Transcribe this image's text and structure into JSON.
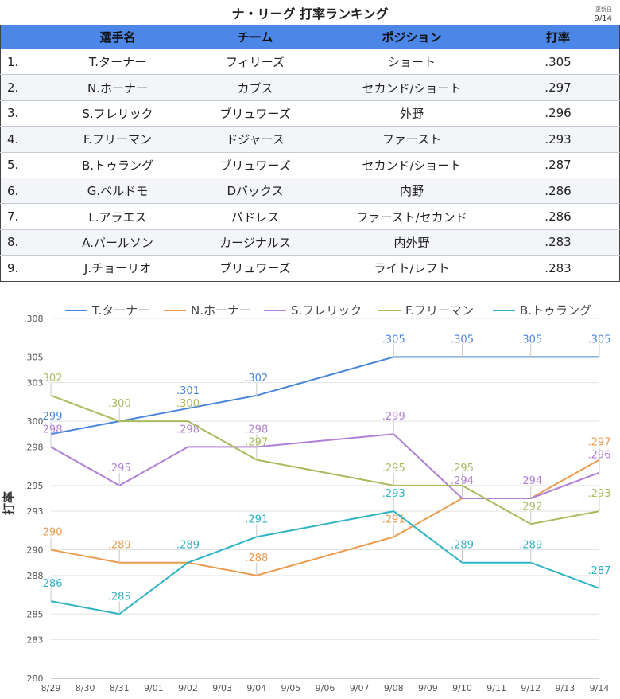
{
  "title": "ナ・リーグ 打率ランキング",
  "updated_label": "更新日",
  "updated_date": "9/14",
  "table": {
    "headers": [
      "",
      "選手名",
      "チーム",
      "ポジション",
      "打率"
    ],
    "rows": [
      [
        "1.",
        "T.ターナー",
        "フィリーズ",
        "ショート",
        ".305"
      ],
      [
        "2.",
        "N.ホーナー",
        "カブス",
        "セカンド/ショート",
        ".297"
      ],
      [
        "3.",
        "S.フレリック",
        "ブリュワーズ",
        "外野",
        ".296"
      ],
      [
        "4.",
        "F.フリーマン",
        "ドジャース",
        "ファースト",
        ".293"
      ],
      [
        "5.",
        "B.トゥラング",
        "ブリュワーズ",
        "セカンド/ショート",
        ".287"
      ],
      [
        "6.",
        "G.ペルドモ",
        "Dバックス",
        "内野",
        ".286"
      ],
      [
        "7.",
        "L.アラエス",
        "パドレス",
        "ファースト/セカンド",
        ".286"
      ],
      [
        "8.",
        "A.バールソン",
        "カージナルス",
        "内外野",
        ".283"
      ],
      [
        "9.",
        "J.チョーリオ",
        "ブリュワーズ",
        "ライト/レフト",
        ".283"
      ]
    ]
  },
  "chart_data": {
    "type": "line",
    "ylabel": "打率",
    "xlabel": "",
    "x": [
      "8/29",
      "8/30",
      "8/31",
      "9/01",
      "9/02",
      "9/03",
      "9/04",
      "9/05",
      "9/06",
      "9/07",
      "9/08",
      "9/09",
      "9/10",
      "9/11",
      "9/12",
      "9/13",
      "9/14"
    ],
    "yticks": [
      ".280",
      ".283",
      ".285",
      ".288",
      ".290",
      ".293",
      ".295",
      ".298",
      ".300",
      ".303",
      ".305",
      ".308"
    ],
    "ylim": [
      0.28,
      0.3075
    ],
    "grid": true,
    "legend": "top",
    "series": [
      {
        "name": "T.ターナー",
        "color": "#4a86d8",
        "points": [
          [
            0,
            0.299,
            ".299"
          ],
          [
            2,
            0.3,
            null
          ],
          [
            4,
            0.301,
            ".301"
          ],
          [
            6,
            0.302,
            ".302"
          ],
          [
            10,
            0.305,
            ".305"
          ],
          [
            12,
            0.305,
            ".305"
          ],
          [
            14,
            0.305,
            ".305"
          ],
          [
            16,
            0.305,
            ".305"
          ]
        ]
      },
      {
        "name": "N.ホーナー",
        "color": "#eb9b4e",
        "points": [
          [
            0,
            0.29,
            ".290"
          ],
          [
            2,
            0.289,
            ".289"
          ],
          [
            4,
            0.289,
            null
          ],
          [
            6,
            0.288,
            ".288"
          ],
          [
            10,
            0.291,
            ".291"
          ],
          [
            12,
            0.294,
            null
          ],
          [
            14,
            0.294,
            null
          ],
          [
            16,
            0.297,
            ".297"
          ]
        ]
      },
      {
        "name": "S.フレリック",
        "color": "#b07fd6",
        "points": [
          [
            0,
            0.298,
            ".298"
          ],
          [
            2,
            0.295,
            ".295"
          ],
          [
            4,
            0.298,
            ".298"
          ],
          [
            6,
            0.298,
            ".298"
          ],
          [
            10,
            0.299,
            ".299"
          ],
          [
            12,
            0.294,
            ".294"
          ],
          [
            14,
            0.294,
            ".294"
          ],
          [
            16,
            0.296,
            ".296"
          ]
        ]
      },
      {
        "name": "F.フリーマン",
        "color": "#a9bb5c",
        "points": [
          [
            0,
            0.302,
            ".302"
          ],
          [
            2,
            0.3,
            ".300"
          ],
          [
            4,
            0.3,
            ".300"
          ],
          [
            6,
            0.297,
            ".297"
          ],
          [
            10,
            0.295,
            ".295"
          ],
          [
            12,
            0.295,
            ".295"
          ],
          [
            14,
            0.292,
            ".292"
          ],
          [
            16,
            0.293,
            ".293"
          ]
        ]
      },
      {
        "name": "B.トゥラング",
        "color": "#2fb4c5",
        "points": [
          [
            0,
            0.286,
            ".286"
          ],
          [
            2,
            0.285,
            ".285"
          ],
          [
            4,
            0.289,
            ".289"
          ],
          [
            6,
            0.291,
            ".291"
          ],
          [
            10,
            0.293,
            ".293"
          ],
          [
            12,
            0.289,
            ".289"
          ],
          [
            14,
            0.289,
            ".289"
          ],
          [
            16,
            0.287,
            ".287"
          ]
        ]
      }
    ]
  }
}
